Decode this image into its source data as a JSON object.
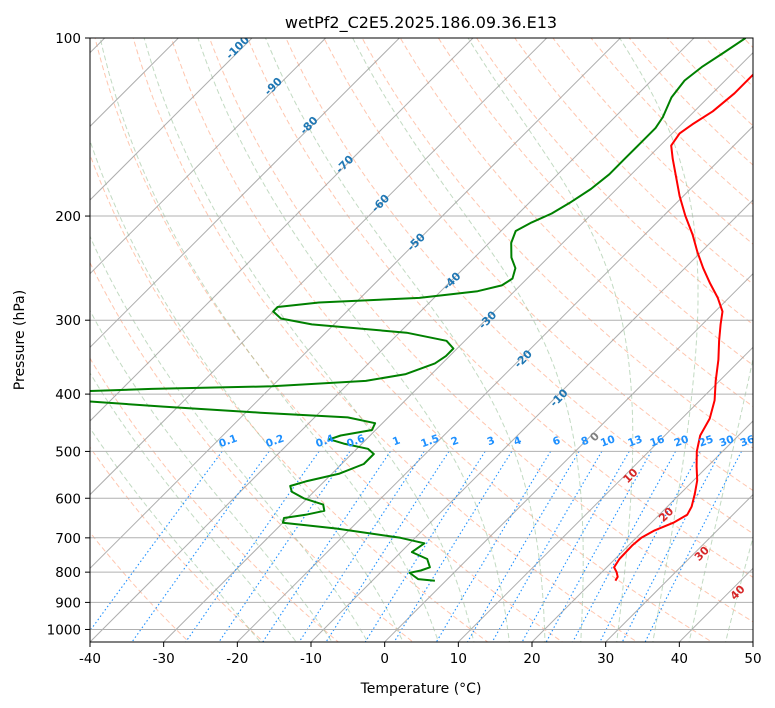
{
  "chart_data": {
    "type": "line",
    "title": "wetPf2_C2E5.2025.186.09.36.E13",
    "xlabel": "Temperature (°C)",
    "ylabel": "Pressure (hPa)",
    "xlim": [
      -40,
      50
    ],
    "ylim": [
      1050,
      100
    ],
    "y_scale": "log",
    "grid": true,
    "x_ticks": [
      -40,
      -30,
      -20,
      -10,
      0,
      10,
      20,
      30,
      40,
      50
    ],
    "y_ticks": [
      100,
      200,
      300,
      400,
      500,
      600,
      700,
      800,
      900,
      1000
    ],
    "colors": {
      "temperature": "#ff0000",
      "dewpoint": "#008000",
      "skew_isotherm": "#a0a0a0",
      "dry_adiabat": "#ffa07a",
      "moist_adiabat": "#8fbc8f",
      "mixing_ratio": "#1e90ff",
      "adiabat_label": "#1f77b4",
      "freezing_label": "#808080",
      "warm_label": "#d62728",
      "mixing_ratio_label": "#1e90ff"
    },
    "series": [
      {
        "key": "temperature",
        "points": [
          [
            827,
            23.0
          ],
          [
            815,
            22.8
          ],
          [
            800,
            22.0
          ],
          [
            785,
            21.0
          ],
          [
            760,
            20.6
          ],
          [
            720,
            20.5
          ],
          [
            700,
            20.7
          ],
          [
            680,
            21.5
          ],
          [
            660,
            23.0
          ],
          [
            640,
            23.8
          ],
          [
            620,
            23.3
          ],
          [
            590,
            22.0
          ],
          [
            560,
            20.5
          ],
          [
            530,
            18.5
          ],
          [
            500,
            16.5
          ],
          [
            470,
            14.8
          ],
          [
            440,
            13.8
          ],
          [
            410,
            12.0
          ],
          [
            380,
            9.5
          ],
          [
            350,
            7.0
          ],
          [
            325,
            4.5
          ],
          [
            305,
            2.5
          ],
          [
            290,
            1.0
          ],
          [
            275,
            -1.5
          ],
          [
            260,
            -4.5
          ],
          [
            245,
            -7.5
          ],
          [
            230,
            -10.5
          ],
          [
            215,
            -13.5
          ],
          [
            200,
            -17.0
          ],
          [
            185,
            -20.5
          ],
          [
            170,
            -24.0
          ],
          [
            160,
            -26.5
          ],
          [
            152,
            -28.5
          ],
          [
            145,
            -29.0
          ],
          [
            140,
            -28.5
          ],
          [
            133,
            -27.5
          ],
          [
            124,
            -27.0
          ],
          [
            117,
            -27.0
          ],
          [
            110,
            -27.0
          ],
          [
            104,
            -28.0
          ],
          [
            100,
            -29.0
          ]
        ]
      },
      {
        "key": "dewpoint",
        "points": [
          [
            827,
            -1.5
          ],
          [
            822,
            -4.0
          ],
          [
            812,
            -5.0
          ],
          [
            802,
            -6.0
          ],
          [
            795,
            -4.8
          ],
          [
            785,
            -4.0
          ],
          [
            760,
            -5.5
          ],
          [
            740,
            -8.5
          ],
          [
            715,
            -8.0
          ],
          [
            700,
            -12.0
          ],
          [
            675,
            -22.0
          ],
          [
            660,
            -30.0
          ],
          [
            648,
            -30.5
          ],
          [
            640,
            -28.0
          ],
          [
            630,
            -26.0
          ],
          [
            615,
            -27.0
          ],
          [
            600,
            -30.5
          ],
          [
            585,
            -33.0
          ],
          [
            572,
            -34.0
          ],
          [
            562,
            -32.5
          ],
          [
            545,
            -29.0
          ],
          [
            525,
            -27.0
          ],
          [
            505,
            -27.0
          ],
          [
            495,
            -28.5
          ],
          [
            485,
            -32.5
          ],
          [
            477,
            -35.0
          ],
          [
            470,
            -34.0
          ],
          [
            460,
            -30.5
          ],
          [
            448,
            -31.0
          ],
          [
            438,
            -35.5
          ],
          [
            430,
            -48.0
          ],
          [
            420,
            -62.0
          ],
          [
            410,
            -75.0
          ],
          [
            400,
            -80.0
          ],
          [
            396,
            -76.0
          ],
          [
            392,
            -66.0
          ],
          [
            388,
            -50.0
          ],
          [
            380,
            -38.0
          ],
          [
            370,
            -33.5
          ],
          [
            355,
            -31.0
          ],
          [
            345,
            -30.5
          ],
          [
            335,
            -30.5
          ],
          [
            325,
            -32.5
          ],
          [
            315,
            -39.0
          ],
          [
            305,
            -53.0
          ],
          [
            298,
            -58.0
          ],
          [
            290,
            -60.0
          ],
          [
            285,
            -60.0
          ],
          [
            280,
            -55.0
          ],
          [
            275,
            -42.0
          ],
          [
            268,
            -35.0
          ],
          [
            262,
            -32.5
          ],
          [
            255,
            -32.0
          ],
          [
            245,
            -33.0
          ],
          [
            235,
            -35.0
          ],
          [
            222,
            -37.0
          ],
          [
            212,
            -38.0
          ],
          [
            205,
            -37.0
          ],
          [
            198,
            -35.5
          ],
          [
            190,
            -34.5
          ],
          [
            180,
            -33.5
          ],
          [
            170,
            -33.0
          ],
          [
            160,
            -33.0
          ],
          [
            150,
            -33.0
          ],
          [
            142,
            -33.0
          ],
          [
            136,
            -33.5
          ],
          [
            126,
            -35.0
          ],
          [
            118,
            -35.5
          ],
          [
            112,
            -35.0
          ],
          [
            106,
            -34.0
          ],
          [
            100,
            -33.0
          ]
        ]
      }
    ],
    "dry_adiabat_labels": [
      "-100",
      "-90",
      "-80",
      "-70",
      "-60",
      "-50",
      "-40",
      "-30",
      "-20",
      "-10",
      "0",
      "10",
      "20",
      "30",
      "40"
    ],
    "mixing_ratio_labels": [
      "0.1",
      "0.2",
      "0.4",
      "0.6",
      "1",
      "1.5",
      "2",
      "3",
      "4",
      "6",
      "8",
      "10",
      "13",
      "16",
      "20",
      "25",
      "30",
      "36"
    ]
  }
}
